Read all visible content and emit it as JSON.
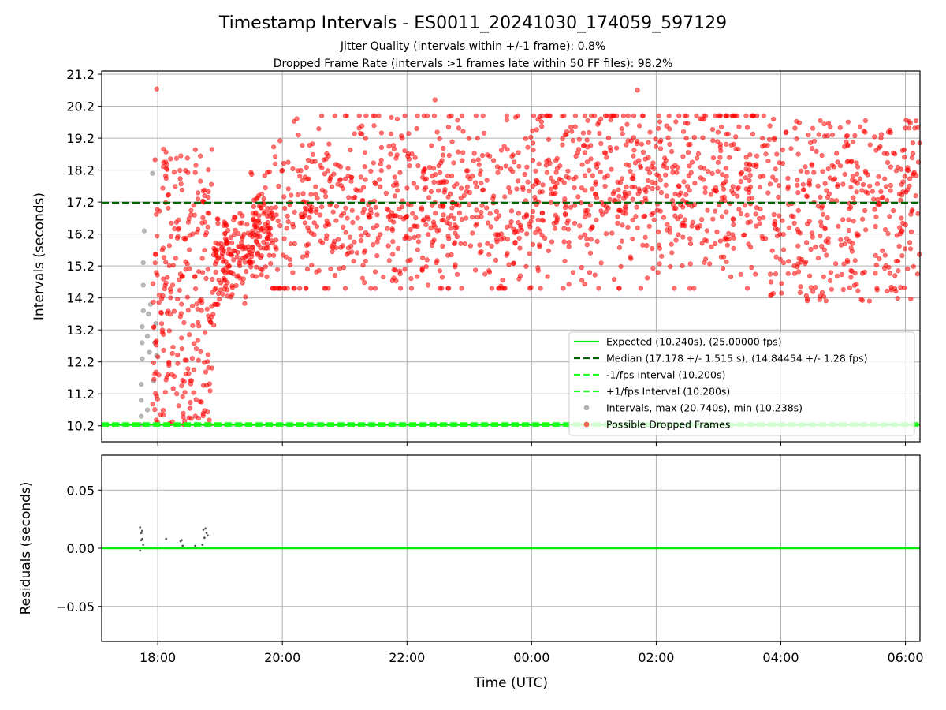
{
  "chart_data": [
    {
      "type": "scatter",
      "title": "Timestamp Intervals - ES0011_20241030_174059_597129",
      "subtitle_lines": [
        "Jitter Quality (intervals within +/-1 frame): 0.8%",
        "Dropped Frame Rate (intervals >1 frames late within 50 FF files): 98.2%"
      ],
      "xlabel": "",
      "ylabel": "Intervals (seconds)",
      "xlim": [
        "2024-10-30 17:06",
        "2024-10-31 06:14"
      ],
      "ylim": [
        9.7,
        21.3
      ],
      "grid": true,
      "x_ticks": [
        "18:00",
        "20:00",
        "22:00",
        "00:00",
        "02:00",
        "04:00",
        "06:00"
      ],
      "y_ticks": [
        "10.2",
        "11.2",
        "12.2",
        "13.2",
        "14.2",
        "15.2",
        "16.2",
        "17.2",
        "18.2",
        "19.2",
        "20.2",
        "21.2"
      ],
      "reference_lines": [
        {
          "name": "Expected (10.240s), (25.00000 fps)",
          "y": 10.24,
          "color": "#00ee00",
          "style": "solid"
        },
        {
          "name": "Median (17.178 +/- 1.515 s), (14.84454 +/- 1.28 fps)",
          "y": 17.178,
          "color": "#006400",
          "style": "dashed"
        },
        {
          "name": "-1/fps Interval (10.200s)",
          "y": 10.2,
          "color": "#22ff22",
          "style": "dashed"
        },
        {
          "name": "+1/fps Interval (10.280s)",
          "y": 10.28,
          "color": "#22ff22",
          "style": "dashed"
        }
      ],
      "series": [
        {
          "name": "Intervals, max (20.740s), min (10.238s)",
          "color": "#808080",
          "points": [
            [
              "17:43",
              10.24
            ],
            [
              "17:44",
              10.5
            ],
            [
              "17:44",
              11.0
            ],
            [
              "17:44",
              11.5
            ],
            [
              "17:45",
              12.3
            ],
            [
              "17:45",
              12.8
            ],
            [
              "17:45",
              13.3
            ],
            [
              "17:46",
              13.8
            ],
            [
              "17:46",
              14.6
            ],
            [
              "17:46",
              15.3
            ],
            [
              "17:47",
              16.3
            ],
            [
              "17:50",
              10.7
            ],
            [
              "17:50",
              13.0
            ],
            [
              "17:51",
              13.7
            ],
            [
              "17:52",
              12.5
            ],
            [
              "17:53",
              14.0
            ],
            [
              "17:55",
              18.1
            ],
            [
              "17:56",
              11.6
            ],
            [
              "17:57",
              12.8
            ],
            [
              "17:58",
              13.4
            ],
            [
              "17:59",
              12.4
            ]
          ]
        },
        {
          "name": "Possible Dropped Frames",
          "color": "#ff0000",
          "points": []
        }
      ],
      "dropped_frame_clusters": [
        {
          "start": "17:55",
          "end": "18:54",
          "y_range": [
            10.24,
            18.9
          ],
          "count": 260,
          "y_mode": "uniform"
        },
        {
          "start": "18:54",
          "end": "19:50",
          "y_range": [
            14.0,
            18.3
          ],
          "count": 230,
          "y_mode": "rising"
        },
        {
          "start": "19:50",
          "end": "03:45",
          "y_range": [
            14.5,
            19.9
          ],
          "count": 1250,
          "y_mode": "rising_plateau"
        },
        {
          "start": "03:45",
          "end": "06:14",
          "y_range": [
            14.1,
            19.8
          ],
          "count": 380,
          "y_mode": "uniform"
        }
      ],
      "dropped_frame_outliers": [
        [
          "17:59",
          20.74
        ],
        [
          "01:42",
          20.7
        ],
        [
          "22:27",
          20.4
        ],
        [
          "18:25",
          10.24
        ],
        [
          "18:47",
          10.24
        ],
        [
          "18:50",
          10.24
        ],
        [
          "18:00",
          10.3
        ]
      ],
      "legend": {
        "location": "lower-right",
        "entries": [
          {
            "label": "Expected (10.240s), (25.00000 fps)",
            "symbol": "line",
            "color": "#00ee00",
            "style": "solid"
          },
          {
            "label": "Median (17.178 +/- 1.515 s), (14.84454 +/- 1.28 fps)",
            "symbol": "line",
            "color": "#006400",
            "style": "dashed"
          },
          {
            "label": "-1/fps Interval (10.200s)",
            "symbol": "line",
            "color": "#22ff22",
            "style": "dashed"
          },
          {
            "label": "+1/fps Interval (10.280s)",
            "symbol": "line",
            "color": "#22ff22",
            "style": "dashed"
          },
          {
            "label": "Intervals, max (20.740s), min (10.238s)",
            "symbol": "marker",
            "color": "#808080"
          },
          {
            "label": "Possible Dropped Frames",
            "symbol": "marker",
            "color": "#ff0000"
          }
        ]
      }
    },
    {
      "type": "scatter",
      "ylabel": "Residuals (seconds)",
      "xlabel": "Time (UTC)",
      "xlim": [
        "2024-10-30 17:06",
        "2024-10-31 06:14"
      ],
      "ylim": [
        -0.08,
        0.08
      ],
      "grid": true,
      "x_ticks": [
        "18:00",
        "20:00",
        "22:00",
        "00:00",
        "02:00",
        "04:00",
        "06:00"
      ],
      "y_ticks": [
        "0.05",
        "0.00",
        "−0.05"
      ],
      "reference_lines": [
        {
          "y": 0,
          "color": "#00ee00",
          "style": "solid"
        }
      ],
      "series": [
        {
          "name": "Residuals",
          "color": "#555555",
          "points": [
            [
              "17:43",
              0.018
            ],
            [
              "17:43",
              -0.002
            ],
            [
              "17:44",
              0.007
            ],
            [
              "17:44",
              0.013
            ],
            [
              "17:45",
              0.008
            ],
            [
              "17:45",
              0.015
            ],
            [
              "17:46",
              0.003
            ],
            [
              "18:08",
              0.008
            ],
            [
              "18:22",
              0.006
            ],
            [
              "18:23",
              0.007
            ],
            [
              "18:24",
              0.002
            ],
            [
              "18:36",
              0.002
            ],
            [
              "18:43",
              0.003
            ],
            [
              "18:44",
              0.016
            ],
            [
              "18:45",
              0.009
            ],
            [
              "18:46",
              0.017
            ],
            [
              "18:47",
              0.013
            ],
            [
              "18:48",
              0.011
            ]
          ]
        }
      ]
    }
  ]
}
